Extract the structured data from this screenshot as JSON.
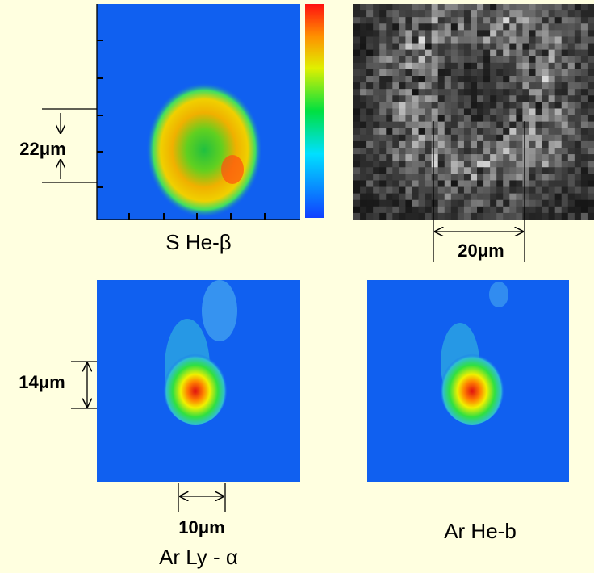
{
  "panels": [
    {
      "label": "S He-β",
      "dimension": "22μm"
    },
    {
      "dimension": "20μm"
    },
    {
      "label": "Ar Ly - α",
      "dimensions": [
        "14μm",
        "10μm"
      ]
    },
    {
      "label": "Ar He-b"
    }
  ]
}
